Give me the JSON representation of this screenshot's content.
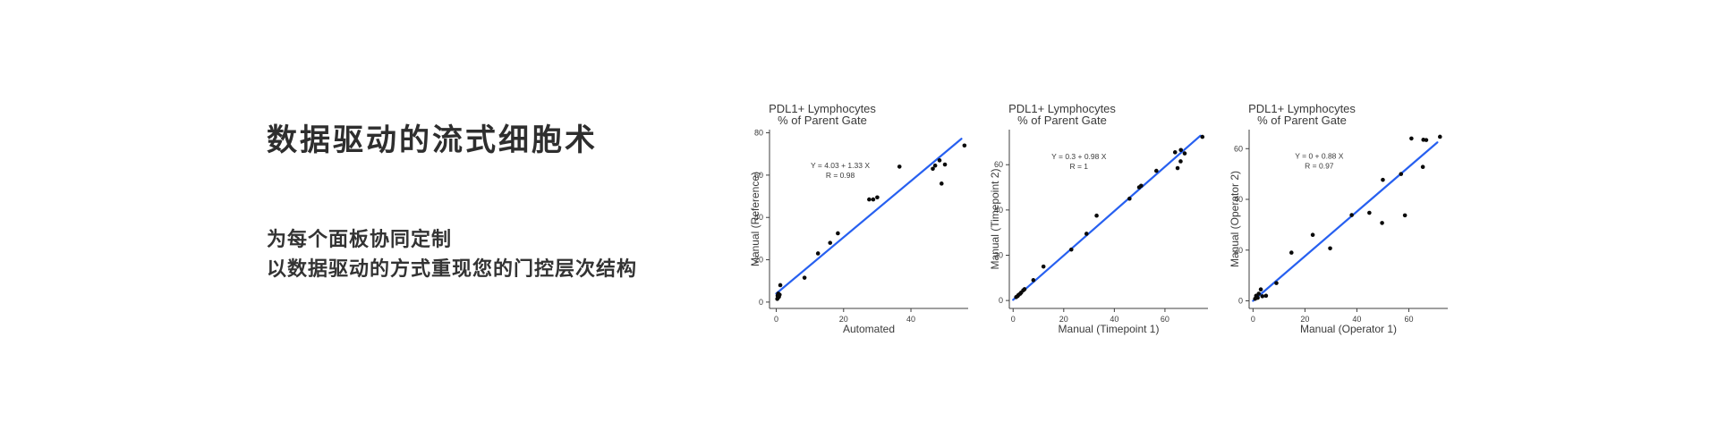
{
  "page": {
    "background": "#ffffff"
  },
  "hero": {
    "title": "数据驱动的流式细胞术",
    "subtitle_line1": "为每个面板协同定制",
    "subtitle_line2": "以数据驱动的方式重现您的门控层次结构"
  },
  "style": {
    "accent_line": "#2760f0",
    "point_color": "#0a0a0a",
    "axis_color": "#3f3f3f",
    "text_color": "#3a3a3a"
  },
  "chart_data": [
    {
      "type": "scatter",
      "title_line1": "PDL1+ Lymphocytes",
      "title_line2": "% of Parent Gate",
      "xlabel": "Automated",
      "ylabel": "Manual (Reference)",
      "annotation_line1": "Y = 4.03 + 1.33 X",
      "annotation_line2": "R = 0.98",
      "annotation_anchor": {
        "x": 19,
        "y": 63.3
      },
      "xlim": [
        -2,
        57
      ],
      "ylim": [
        -3,
        81.5
      ],
      "xticks": [
        0,
        20,
        40
      ],
      "yticks": [
        0,
        20,
        40,
        60,
        80
      ],
      "grid": false,
      "legend": "none",
      "regression": {
        "intercept": 4.03,
        "slope": 1.33,
        "x_start": 0,
        "x_end": 55
      },
      "points": [
        [
          0.3,
          1.5
        ],
        [
          0.4,
          3
        ],
        [
          0.5,
          2
        ],
        [
          0.6,
          4
        ],
        [
          0.8,
          2.5
        ],
        [
          1,
          3.5
        ],
        [
          1.2,
          8
        ],
        [
          8.4,
          11.5
        ],
        [
          12.4,
          23
        ],
        [
          16,
          28
        ],
        [
          18.3,
          32.5
        ],
        [
          27.6,
          48.5
        ],
        [
          28.8,
          48.5
        ],
        [
          30,
          49.5
        ],
        [
          36.6,
          64
        ],
        [
          46.5,
          63
        ],
        [
          47.2,
          64.5
        ],
        [
          48.5,
          67
        ],
        [
          49.1,
          56
        ],
        [
          50.1,
          65
        ],
        [
          55.9,
          74
        ]
      ]
    },
    {
      "type": "scatter",
      "title_line1": "PDL1+ Lymphocytes",
      "title_line2": "% of Parent Gate",
      "xlabel": "Manual (Timepoint 1)",
      "ylabel": "Manual (Timepoint 2)",
      "annotation_line1": "Y = 0.3 + 0.98 X",
      "annotation_line2": "R = 1",
      "annotation_anchor": {
        "x": 26,
        "y": 62.5
      },
      "xlim": [
        -1.5,
        77
      ],
      "ylim": [
        -3.5,
        75.5
      ],
      "xticks": [
        0,
        20,
        40,
        60
      ],
      "yticks": [
        0,
        20,
        40,
        60
      ],
      "grid": false,
      "legend": "none",
      "regression": {
        "intercept": 0.3,
        "slope": 0.98,
        "x_start": 0,
        "x_end": 74
      },
      "points": [
        [
          1.2,
          1.5
        ],
        [
          1.8,
          2
        ],
        [
          2.2,
          2.5
        ],
        [
          2.8,
          3
        ],
        [
          3.2,
          3.5
        ],
        [
          4,
          4.5
        ],
        [
          4.5,
          5
        ],
        [
          8,
          9
        ],
        [
          12,
          15
        ],
        [
          23,
          22.5
        ],
        [
          29,
          29.5
        ],
        [
          33,
          37.5
        ],
        [
          46,
          45
        ],
        [
          49.8,
          50
        ],
        [
          50.6,
          50.7
        ],
        [
          56.6,
          57.3
        ],
        [
          64,
          65.5
        ],
        [
          66.3,
          66.5
        ],
        [
          67.8,
          65
        ],
        [
          66.2,
          61.5
        ],
        [
          65,
          58.5
        ],
        [
          74.8,
          72.3
        ]
      ]
    },
    {
      "type": "scatter",
      "title_line1": "PDL1+ Lymphocytes",
      "title_line2": "% of Parent Gate",
      "xlabel": "Manual (Operator 1)",
      "ylabel": "Manual (Operator 2)",
      "annotation_line1": "Y = 0 + 0.88 X",
      "annotation_line2": "R = 0.97",
      "annotation_anchor": {
        "x": 25.5,
        "y": 56
      },
      "xlim": [
        -1.5,
        75
      ],
      "ylim": [
        -3,
        67.5
      ],
      "xticks": [
        0,
        20,
        40,
        60
      ],
      "yticks": [
        0,
        20,
        40,
        60
      ],
      "grid": false,
      "legend": "none",
      "regression": {
        "intercept": 0,
        "slope": 0.88,
        "x_start": 0,
        "x_end": 71
      },
      "points": [
        [
          0.8,
          0.8
        ],
        [
          1.2,
          2
        ],
        [
          1.8,
          1.2
        ],
        [
          2.2,
          2.8
        ],
        [
          3,
          4.5
        ],
        [
          3.6,
          1.8
        ],
        [
          5,
          2
        ],
        [
          9,
          7
        ],
        [
          14.8,
          19
        ],
        [
          23,
          26
        ],
        [
          29.7,
          20.7
        ],
        [
          38,
          33.8
        ],
        [
          44.8,
          34.7
        ],
        [
          49.7,
          30.7
        ],
        [
          50,
          47.7
        ],
        [
          57,
          50
        ],
        [
          58.5,
          33.7
        ],
        [
          61,
          64
        ],
        [
          65.4,
          52.8
        ],
        [
          65.6,
          63.5
        ],
        [
          66.7,
          63.4
        ],
        [
          72,
          64.7
        ]
      ]
    }
  ]
}
